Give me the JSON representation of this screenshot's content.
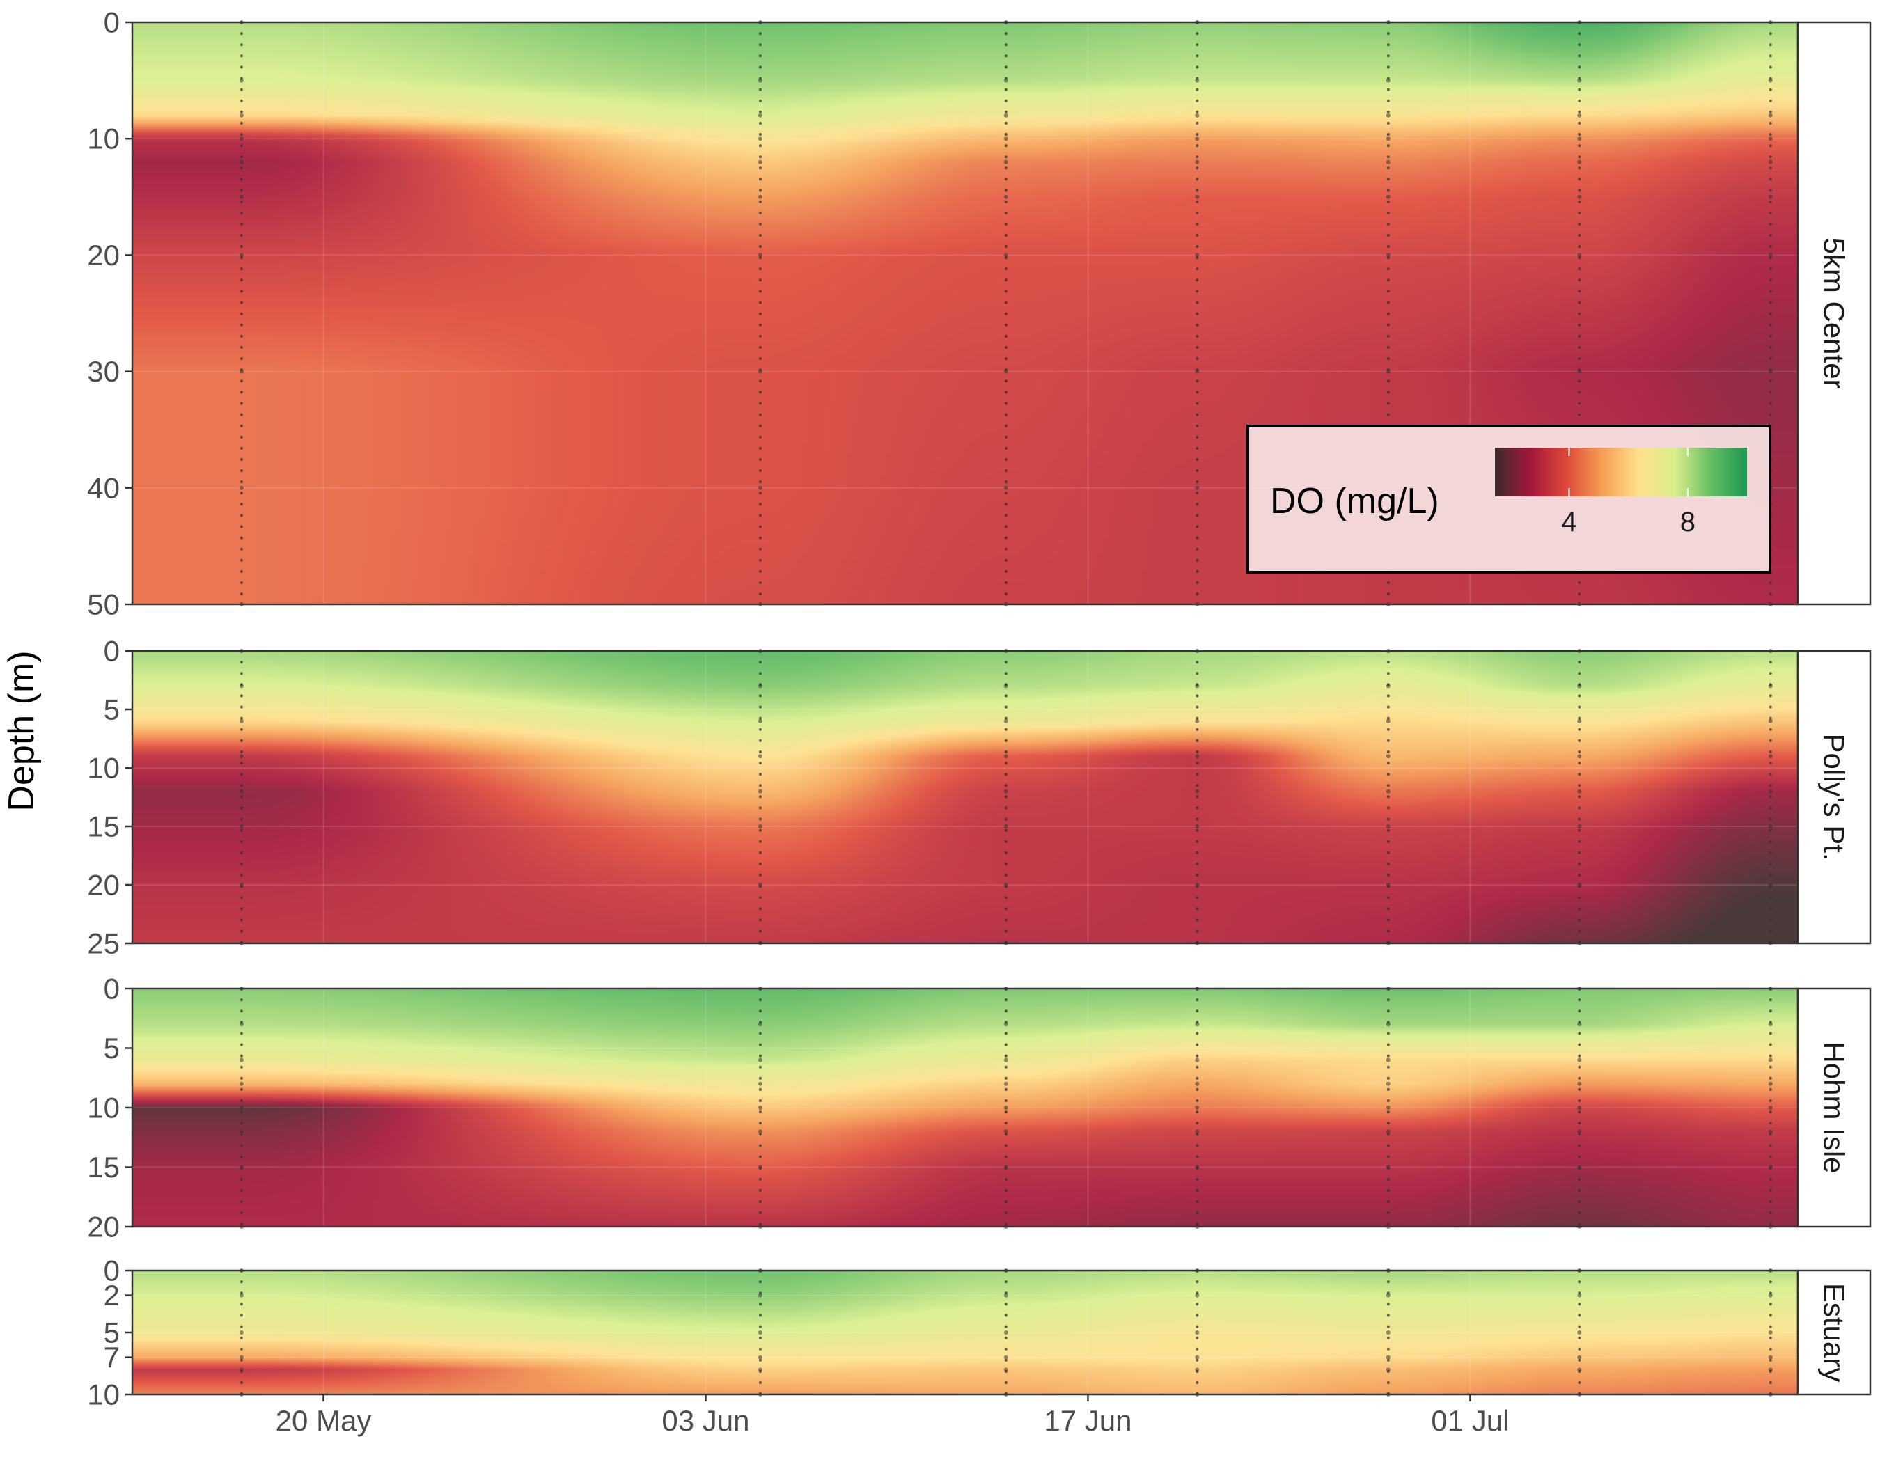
{
  "chart_data": {
    "type": "heatmap",
    "ylabel": "Depth (m)",
    "x_ticks": [
      "20 May",
      "03 Jun",
      "17 Jun",
      "01 Jul"
    ],
    "x_tick_dates": [
      "2023-05-20",
      "2023-06-03",
      "2023-06-17",
      "2023-07-01"
    ],
    "xlim": [
      "2023-05-13",
      "2023-07-13"
    ],
    "sample_dates": [
      "2023-05-17",
      "2023-06-05",
      "2023-06-14",
      "2023-06-21",
      "2023-06-28",
      "2023-07-05",
      "2023-07-12"
    ],
    "legend": {
      "title": "DO (mg/L)",
      "ticks": [
        4,
        8
      ],
      "range": [
        1.5,
        10
      ],
      "colors": [
        "#3b2a2a",
        "#a5173a",
        "#e04a3a",
        "#f6a055",
        "#fee08b",
        "#d9ef8b",
        "#66bd63",
        "#1a9850"
      ],
      "position": "inside-bottom-right"
    },
    "panels": [
      {
        "name": "5km Center",
        "ylim": [
          50,
          0
        ],
        "y_ticks": [
          0,
          10,
          20,
          30,
          40,
          50
        ],
        "profiles": [
          {
            "date": "2023-05-17",
            "depths": [
              0,
              5,
              8,
              10,
              12,
              15,
              20,
              30,
              40,
              50
            ],
            "do": [
              8.0,
              7.5,
              6.2,
              3.0,
              2.6,
              2.9,
              3.5,
              4.4,
              4.4,
              4.4
            ]
          },
          {
            "date": "2023-06-05",
            "depths": [
              0,
              5,
              8,
              10,
              12,
              15,
              20,
              30,
              40,
              50
            ],
            "do": [
              8.8,
              8.2,
              7.5,
              6.5,
              5.8,
              5.0,
              4.0,
              3.8,
              3.8,
              3.7
            ]
          },
          {
            "date": "2023-06-14",
            "depths": [
              0,
              5,
              8,
              10,
              12,
              15,
              20,
              30,
              40,
              50
            ],
            "do": [
              8.6,
              8.0,
              6.8,
              5.5,
              4.6,
              4.2,
              3.8,
              3.6,
              3.5,
              3.4
            ]
          },
          {
            "date": "2023-06-21",
            "depths": [
              0,
              5,
              8,
              10,
              12,
              15,
              20,
              30,
              40,
              50
            ],
            "do": [
              8.4,
              7.8,
              6.5,
              5.0,
              4.5,
              4.0,
              3.8,
              3.4,
              3.3,
              3.3
            ]
          },
          {
            "date": "2023-06-28",
            "depths": [
              0,
              5,
              8,
              10,
              12,
              15,
              20,
              30,
              40,
              50
            ],
            "do": [
              8.5,
              7.8,
              6.5,
              5.2,
              4.6,
              4.0,
              3.6,
              3.2,
              3.2,
              3.2
            ]
          },
          {
            "date": "2023-07-05",
            "depths": [
              0,
              5,
              8,
              10,
              12,
              15,
              20,
              30,
              40,
              50
            ],
            "do": [
              9.4,
              8.0,
              6.2,
              4.8,
              4.2,
              3.8,
              3.5,
              2.8,
              3.0,
              3.1
            ]
          },
          {
            "date": "2023-07-12",
            "depths": [
              0,
              5,
              8,
              10,
              12,
              15,
              20,
              30,
              40,
              50
            ],
            "do": [
              8.2,
              7.2,
              5.8,
              4.2,
              3.6,
              3.2,
              2.8,
              2.4,
              2.6,
              2.8
            ]
          }
        ]
      },
      {
        "name": "Polly's Pt.",
        "ylim": [
          25,
          0
        ],
        "y_ticks": [
          0,
          5,
          10,
          15,
          20,
          25
        ],
        "profiles": [
          {
            "date": "2023-05-17",
            "depths": [
              0,
              3,
              6,
              9,
              12,
              15,
              20,
              25
            ],
            "do": [
              8.2,
              7.5,
              6.2,
              3.2,
              2.4,
              2.6,
              3.0,
              3.2
            ]
          },
          {
            "date": "2023-06-05",
            "depths": [
              0,
              3,
              6,
              9,
              12,
              15,
              20,
              25
            ],
            "do": [
              9.0,
              8.5,
              7.6,
              6.4,
              5.5,
              4.4,
              3.6,
              3.2
            ]
          },
          {
            "date": "2023-06-14",
            "depths": [
              0,
              3,
              6,
              9,
              12,
              15,
              20,
              25
            ],
            "do": [
              8.5,
              8.0,
              7.0,
              4.0,
              3.4,
              3.2,
              3.2,
              3.0
            ]
          },
          {
            "date": "2023-06-21",
            "depths": [
              0,
              3,
              6,
              9,
              12,
              15,
              20,
              25
            ],
            "do": [
              8.2,
              7.8,
              6.5,
              3.2,
              3.2,
              3.2,
              3.0,
              3.0
            ]
          },
          {
            "date": "2023-06-28",
            "depths": [
              0,
              3,
              6,
              9,
              12,
              15,
              20,
              25
            ],
            "do": [
              8.0,
              7.2,
              6.2,
              5.5,
              4.4,
              3.4,
              3.0,
              2.8
            ]
          },
          {
            "date": "2023-07-05",
            "depths": [
              0,
              3,
              6,
              9,
              12,
              15,
              20,
              25
            ],
            "do": [
              8.5,
              8.0,
              6.5,
              5.2,
              4.0,
              3.2,
              2.8,
              2.0
            ]
          },
          {
            "date": "2023-07-12",
            "depths": [
              0,
              3,
              6,
              9,
              12,
              15,
              20,
              25
            ],
            "do": [
              8.0,
              7.2,
              5.8,
              4.0,
              2.6,
              2.2,
              1.6,
              1.2
            ]
          }
        ]
      },
      {
        "name": "Hohm Isle",
        "ylim": [
          20,
          0
        ],
        "y_ticks": [
          0,
          5,
          10,
          15,
          20
        ],
        "profiles": [
          {
            "date": "2023-05-17",
            "depths": [
              0,
              3,
              6,
              8,
              10,
              12,
              15,
              20
            ],
            "do": [
              8.5,
              8.0,
              7.0,
              5.5,
              1.8,
              2.2,
              2.6,
              2.8
            ]
          },
          {
            "date": "2023-06-05",
            "depths": [
              0,
              3,
              6,
              8,
              10,
              12,
              15,
              20
            ],
            "do": [
              9.0,
              8.5,
              7.8,
              6.8,
              5.8,
              4.8,
              4.0,
              3.0
            ]
          },
          {
            "date": "2023-06-14",
            "depths": [
              0,
              3,
              6,
              8,
              10,
              12,
              15,
              20
            ],
            "do": [
              8.6,
              8.0,
              7.0,
              6.0,
              5.0,
              3.8,
              3.0,
              2.6
            ]
          },
          {
            "date": "2023-06-21",
            "depths": [
              0,
              3,
              6,
              8,
              10,
              12,
              15,
              20
            ],
            "do": [
              8.6,
              7.8,
              6.0,
              5.2,
              4.5,
              3.5,
              3.0,
              2.4
            ]
          },
          {
            "date": "2023-06-28",
            "depths": [
              0,
              3,
              6,
              8,
              10,
              12,
              15,
              20
            ],
            "do": [
              8.8,
              8.2,
              6.2,
              6.0,
              4.8,
              3.4,
              3.0,
              2.4
            ]
          },
          {
            "date": "2023-07-05",
            "depths": [
              0,
              3,
              6,
              8,
              10,
              12,
              15,
              20
            ],
            "do": [
              8.6,
              8.2,
              6.2,
              5.0,
              3.5,
              3.0,
              2.6,
              2.0
            ]
          },
          {
            "date": "2023-07-12",
            "depths": [
              0,
              3,
              6,
              8,
              10,
              12,
              15,
              20
            ],
            "do": [
              8.5,
              7.6,
              6.2,
              5.2,
              4.0,
              3.2,
              2.8,
              2.4
            ]
          }
        ]
      },
      {
        "name": "Estuary",
        "ylim": [
          10,
          0
        ],
        "y_ticks": [
          0,
          2,
          5,
          7,
          10
        ],
        "profiles": [
          {
            "date": "2023-05-17",
            "depths": [
              0,
              2,
              5,
              7,
              8,
              10
            ],
            "do": [
              8.0,
              7.6,
              6.8,
              5.2,
              3.2,
              4.6
            ]
          },
          {
            "date": "2023-06-05",
            "depths": [
              0,
              2,
              5,
              7,
              8,
              10
            ],
            "do": [
              8.8,
              8.4,
              7.5,
              6.5,
              6.0,
              5.0
            ]
          },
          {
            "date": "2023-06-14",
            "depths": [
              0,
              2,
              5,
              7,
              8,
              10
            ],
            "do": [
              8.2,
              7.8,
              7.0,
              6.4,
              5.8,
              5.2
            ]
          },
          {
            "date": "2023-06-21",
            "depths": [
              0,
              2,
              5,
              7,
              8,
              10
            ],
            "do": [
              8.0,
              7.5,
              6.6,
              6.4,
              6.0,
              5.5
            ]
          },
          {
            "date": "2023-06-28",
            "depths": [
              0,
              2,
              5,
              7,
              8,
              10
            ],
            "do": [
              8.2,
              7.6,
              6.8,
              6.2,
              5.6,
              5.0
            ]
          },
          {
            "date": "2023-07-05",
            "depths": [
              0,
              2,
              5,
              7,
              8,
              10
            ],
            "do": [
              8.0,
              7.6,
              6.6,
              5.8,
              5.2,
              4.6
            ]
          },
          {
            "date": "2023-07-12",
            "depths": [
              0,
              2,
              5,
              7,
              8,
              10
            ],
            "do": [
              8.0,
              7.4,
              6.4,
              5.6,
              5.0,
              4.4
            ]
          }
        ]
      }
    ]
  }
}
